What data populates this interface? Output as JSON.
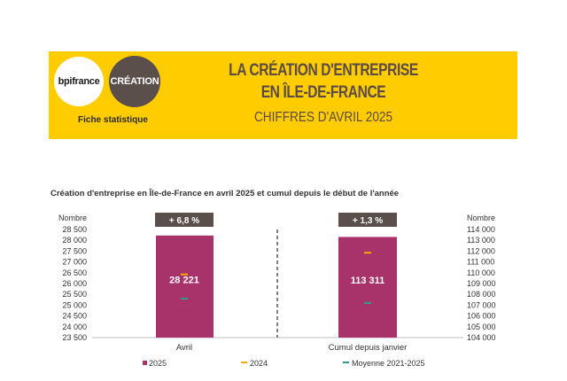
{
  "header": {
    "logo_bpi": "bpifrance",
    "logo_creation": "CRÉATION",
    "fiche": "Fiche statistique",
    "title_line1": "LA CRÉATION D'ENTREPRISE",
    "title_line2": "EN ÎLE-DE-FRANCE",
    "subtitle": "CHIFFRES D'AVRIL 2025"
  },
  "colors": {
    "banner": "#ffcc00",
    "bar": "#a8326a",
    "marker_2024": "#ffa500",
    "marker_avg": "#2e9d8a",
    "badge": "#5b4f4b"
  },
  "chart_data": {
    "type": "bar",
    "title": "Création d'entreprise en Île-de-France en avril 2025 et cumul depuis le début de l'année",
    "left_axis_label": "Nombre",
    "right_axis_label": "Nombre",
    "left_ylim": [
      23500,
      28500
    ],
    "left_ticks": [
      "28 500",
      "28 000",
      "27 500",
      "27 000",
      "26 500",
      "26 000",
      "25 500",
      "25 000",
      "24 500",
      "24 000",
      "23 500"
    ],
    "right_ylim": [
      104000,
      114000
    ],
    "right_ticks": [
      "114 000",
      "113 000",
      "112 000",
      "111 000",
      "110 000",
      "109 000",
      "108 000",
      "107 000",
      "106 000",
      "105 000",
      "104 000"
    ],
    "categories": [
      "Avril",
      "Cumul depuis janvier"
    ],
    "series": [
      {
        "name": "2025",
        "values": [
          28221,
          113311
        ],
        "labels": [
          "28 221",
          "113 311"
        ]
      },
      {
        "name": "2024",
        "values": [
          26421,
          111850
        ]
      },
      {
        "name": "Moyenne 2021-2025",
        "values": [
          25300,
          107200
        ]
      }
    ],
    "badges": [
      "+ 6,8 %",
      "+ 1,3 %"
    ],
    "legend_position": "bottom"
  }
}
